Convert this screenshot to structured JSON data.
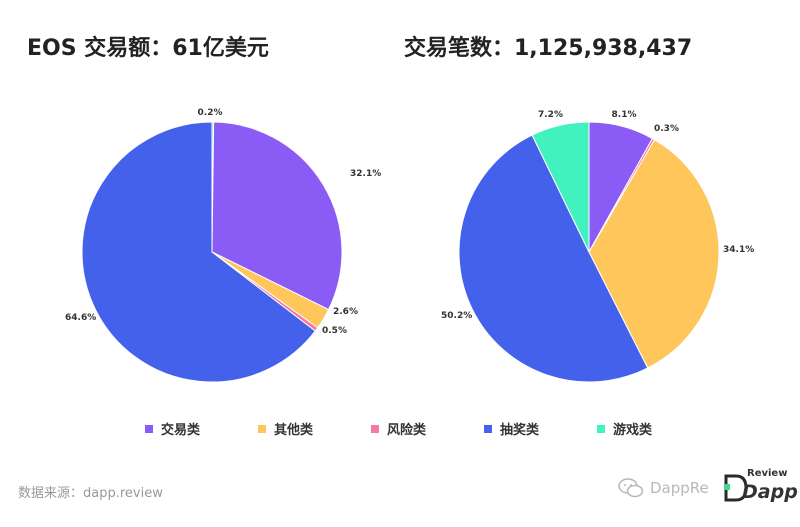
{
  "titles": {
    "left": "EOS 交易额：61亿美元",
    "right": "交易笔数：1,125,938,437"
  },
  "colors": {
    "交易类": "#8a5cf5",
    "其他类": "#ffc65c",
    "风险类": "#f47aa6",
    "抽奖类": "#4461ec",
    "游戏类": "#41f2bf"
  },
  "chart_data": [
    {
      "type": "pie",
      "title": "EOS 交易额：61亿美元",
      "categories": [
        "游戏类",
        "交易类",
        "其他类",
        "风险类",
        "抽奖类"
      ],
      "values": [
        0.2,
        32.1,
        2.6,
        0.5,
        64.6
      ],
      "labels": [
        "0.2%",
        "32.1%",
        "2.6%",
        "0.5%",
        "64.6%"
      ]
    },
    {
      "type": "pie",
      "title": "交易笔数：1,125,938,437",
      "categories": [
        "交易类",
        "风险类",
        "其他类",
        "抽奖类",
        "游戏类"
      ],
      "values": [
        8.1,
        0.3,
        34.1,
        50.2,
        7.2
      ],
      "labels": [
        "8.1%",
        "0.3%",
        "34.1%",
        "50.2%",
        "7.2%"
      ]
    }
  ],
  "legend": [
    {
      "label": "交易类",
      "color": "#8a5cf5"
    },
    {
      "label": "其他类",
      "color": "#ffc65c"
    },
    {
      "label": "风险类",
      "color": "#f47aa6"
    },
    {
      "label": "抽奖类",
      "color": "#4461ec"
    },
    {
      "label": "游戏类",
      "color": "#41f2bf"
    }
  ],
  "footer": {
    "source": "数据来源：dapp.review",
    "watermark": "DappRe",
    "brand_review": "Review",
    "brand_dapp": "Dapp",
    "brand_logo_icon": "dapp-review-logo-icon",
    "wechat_icon": "wechat-icon"
  }
}
